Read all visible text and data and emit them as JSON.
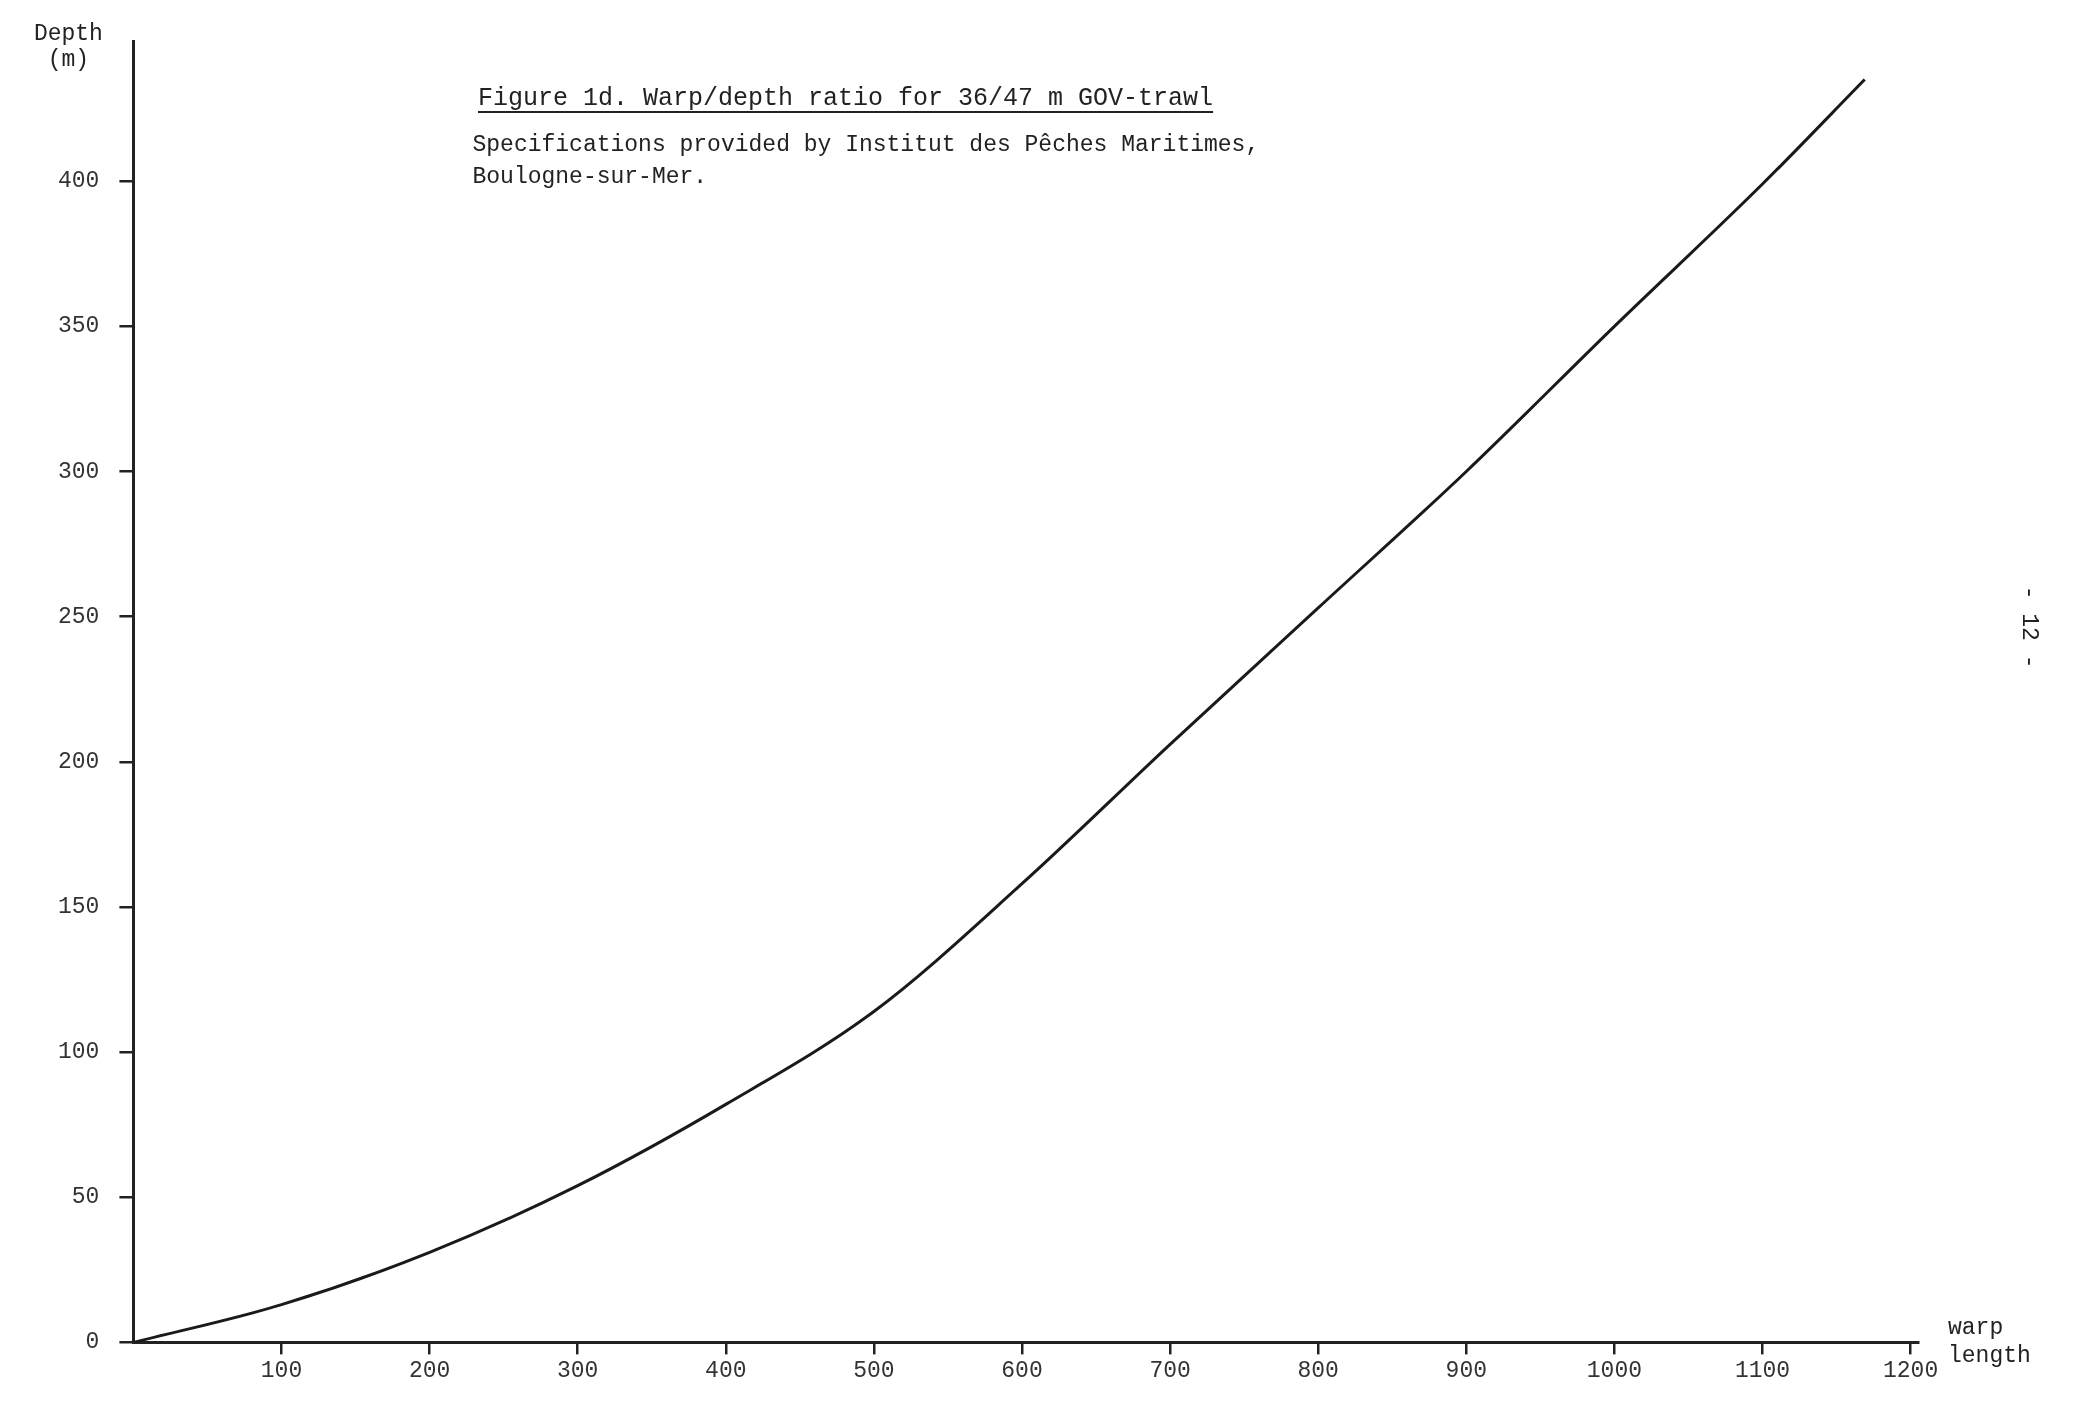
{
  "chart_data": {
    "type": "line",
    "title": "Figure 1d. Warp/depth ratio for 36/47 m GOV-trawl",
    "subtitle": "Specifications provided by Institut des Pêches Maritimes, Boulogne-sur-Mer.",
    "xlabel": "warp length",
    "ylabel": "Depth (m)",
    "annotations": [
      "- 12 -"
    ],
    "x": [
      0,
      100,
      200,
      300,
      400,
      500,
      600,
      700,
      800,
      900,
      1000,
      1100,
      1169
    ],
    "series": [
      {
        "color": "#1a1a1a",
        "values": [
          0,
          13,
          31,
          54,
          82,
          114,
          158,
          206,
          253,
          300,
          350,
          399,
          435
        ]
      }
    ],
    "xlim": [
      0,
      1205
    ],
    "ylim": [
      0,
      448
    ],
    "xticks": [
      100,
      200,
      300,
      400,
      500,
      600,
      700,
      800,
      900,
      1000,
      1100,
      1200
    ],
    "yticks": [
      0,
      50,
      100,
      150,
      200,
      250,
      300,
      350,
      400
    ],
    "grid": false,
    "legend": false,
    "marker": "none",
    "line_style": "solid"
  }
}
